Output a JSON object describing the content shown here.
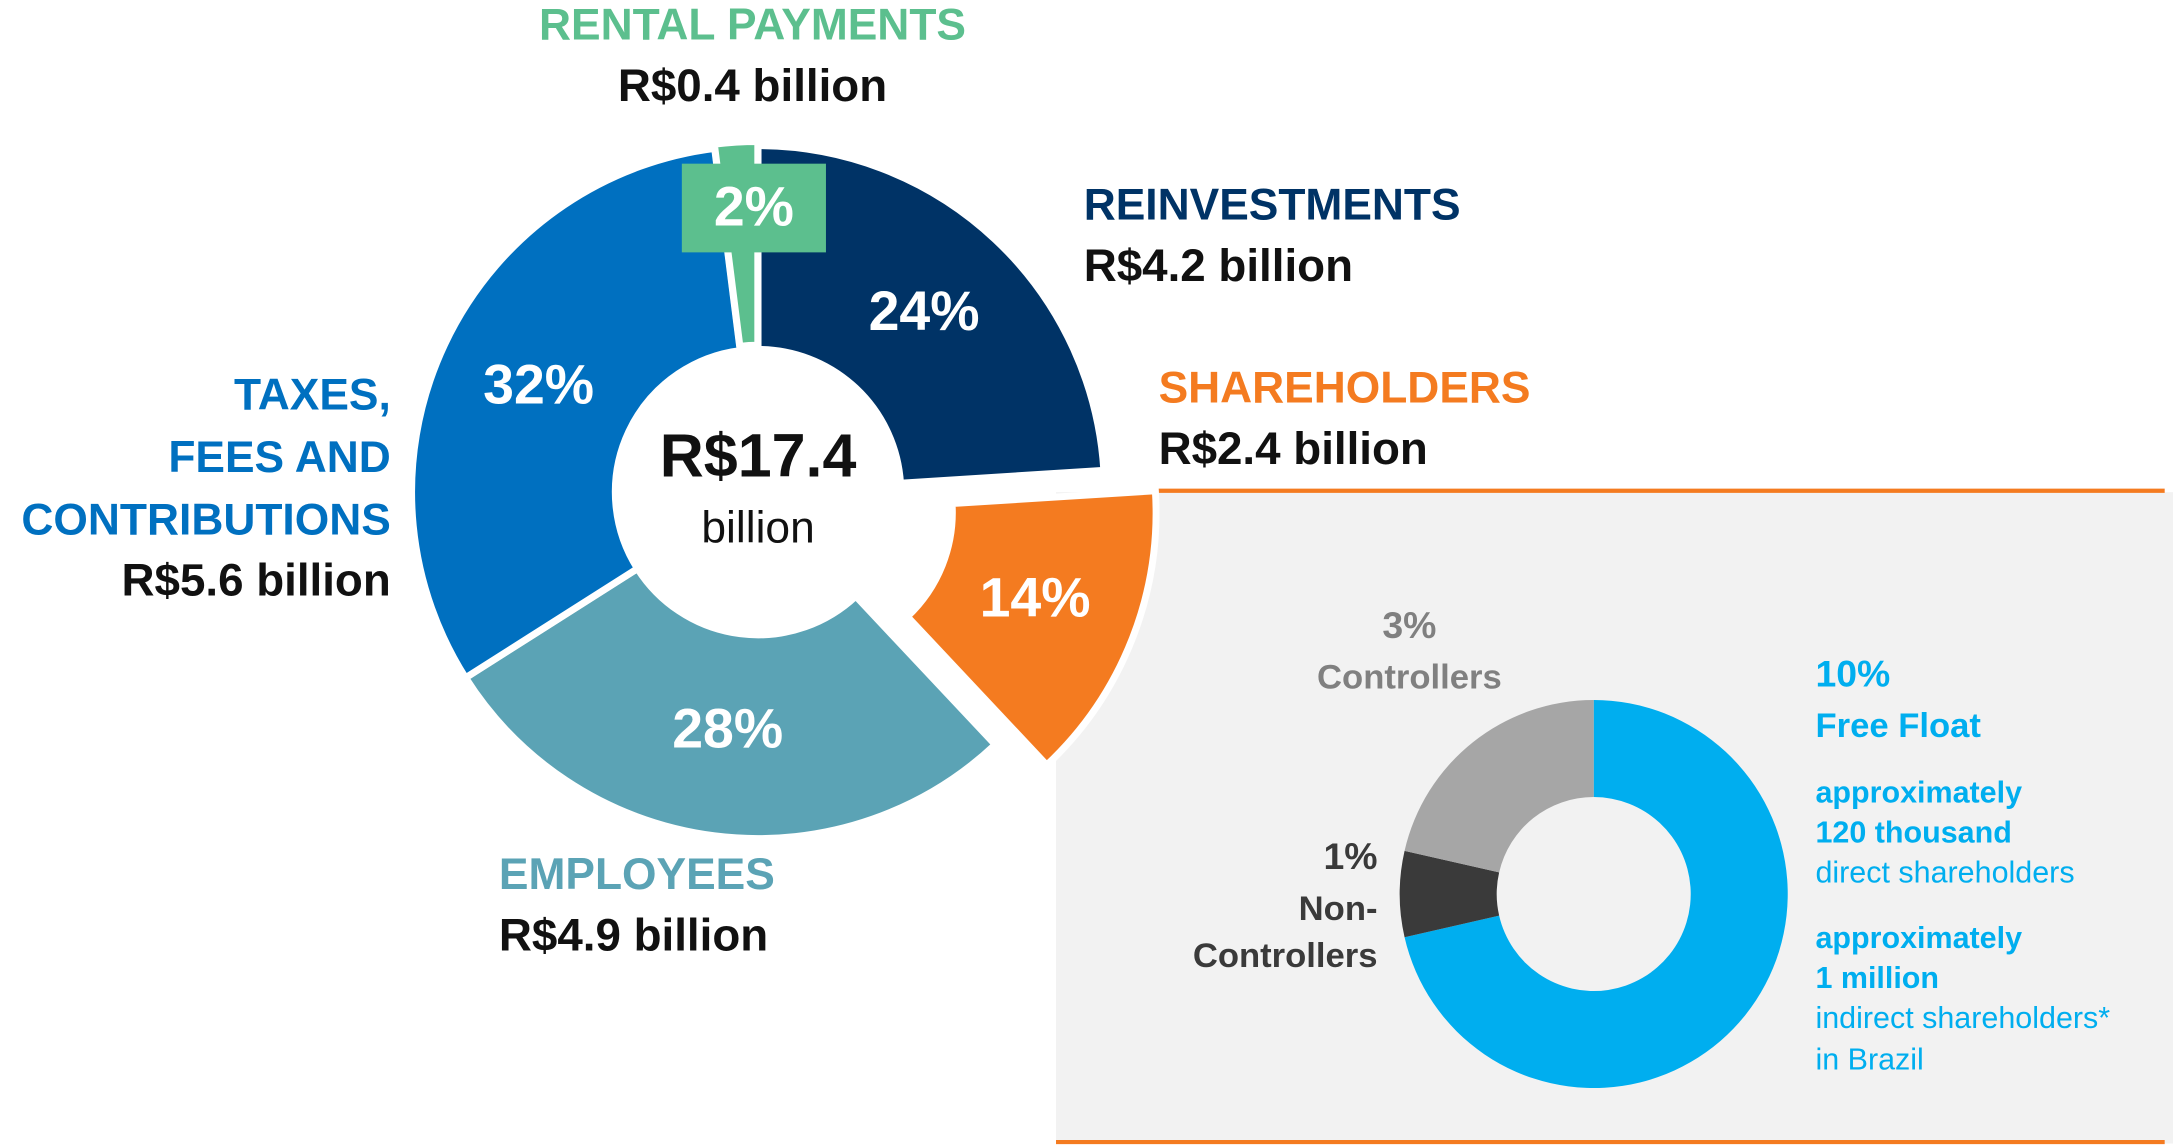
{
  "chart_data": [
    {
      "type": "donut",
      "center_value": "R$17.4",
      "center_unit": "billion",
      "categories": [
        [
          "REINVESTMENTS"
        ],
        [
          "SHAREHOLDERS"
        ],
        [
          "EMPLOYEES"
        ],
        [
          "TAXES,",
          "FEES AND",
          "CONTRIBUTIONS"
        ],
        [
          "RENTAL PAYMENTS"
        ]
      ],
      "amounts": [
        "R$4.2 billion",
        "R$2.4 billion",
        "R$4.9 billion",
        "R$5.6 billion",
        "R$0.4 billion"
      ],
      "values": [
        24,
        14,
        28,
        32,
        2
      ],
      "value_labels": [
        "24%",
        "14%",
        "28%",
        "32%",
        "2%"
      ],
      "colors": [
        "#003366",
        "#f47b20",
        "#5ba3b5",
        "#0070c0",
        "#5cbf8e"
      ]
    },
    {
      "type": "donut",
      "categories": [
        [
          "Free Float"
        ],
        [
          "Non-",
          "Controllers"
        ],
        [
          "Controllers"
        ]
      ],
      "values": [
        10,
        1,
        3
      ],
      "value_labels": [
        "10%",
        "1%",
        "3%"
      ],
      "colors": [
        "#00aeef",
        "#3a3a3a",
        "#a6a6a6"
      ],
      "notes": [
        {
          "bold": [
            "approximately",
            "120 thousand"
          ],
          "text": [
            "direct shareholders"
          ]
        },
        {
          "bold": [
            "approximately",
            "1 million"
          ],
          "text": [
            "indirect shareholders*",
            "in Brazil"
          ]
        }
      ]
    }
  ]
}
